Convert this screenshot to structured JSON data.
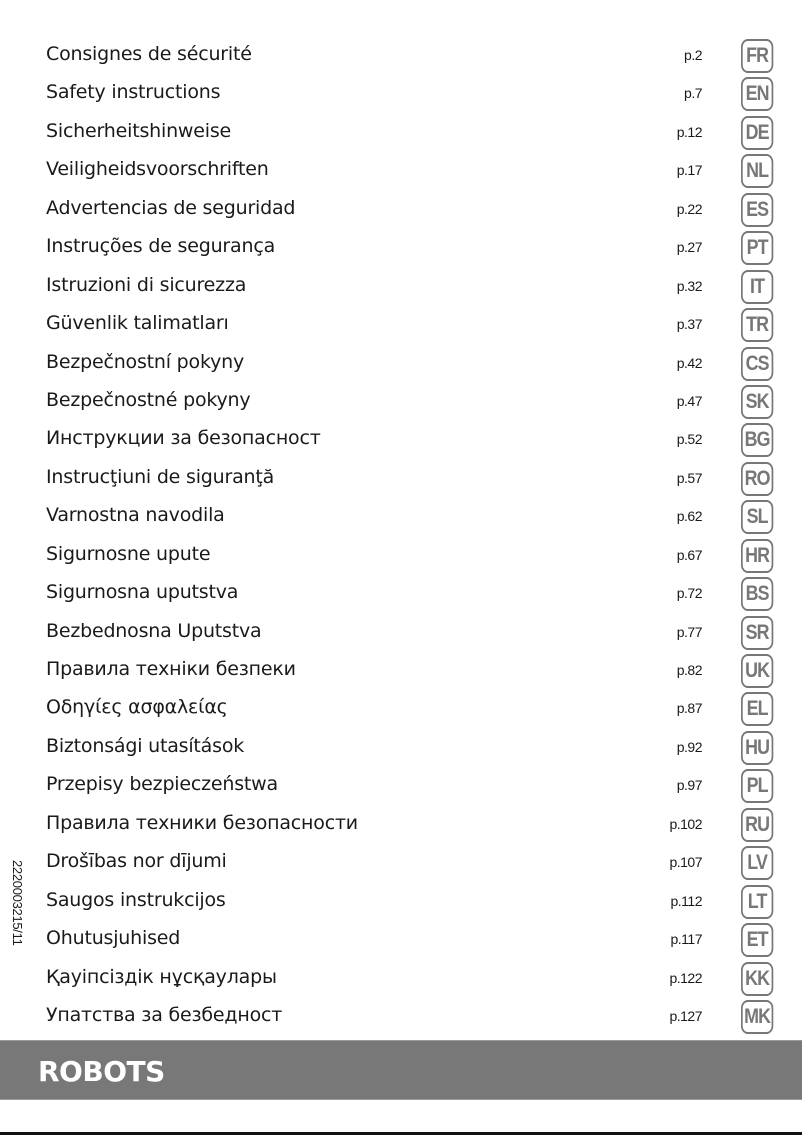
{
  "toc": [
    {
      "title": "Consignes de sécurité",
      "page": "p.2",
      "lang": "FR"
    },
    {
      "title": "Safety instructions",
      "page": "p.7",
      "lang": "EN"
    },
    {
      "title": "Sicherheitshinweise",
      "page": "p.12",
      "lang": "DE"
    },
    {
      "title": "Veiligheidsvoorschriften",
      "page": "p.17",
      "lang": "NL"
    },
    {
      "title": "Advertencias de seguridad",
      "page": "p.22",
      "lang": "ES"
    },
    {
      "title": "Instruções de segurança",
      "page": "p.27",
      "lang": "PT"
    },
    {
      "title": "Istruzioni di sicurezza",
      "page": "p.32",
      "lang": "IT"
    },
    {
      "title": "Güvenlik talimatları",
      "page": "p.37",
      "lang": "TR"
    },
    {
      "title": "Bezpečnostní pokyny",
      "page": "p.42",
      "lang": "CS"
    },
    {
      "title": "Bezpečnostné pokyny",
      "page": "p.47",
      "lang": "SK"
    },
    {
      "title": "Инструкции за безопасност",
      "page": "p.52",
      "lang": "BG"
    },
    {
      "title": "Instrucţiuni de siguranţă",
      "page": "p.57",
      "lang": "RO"
    },
    {
      "title": "Varnostna navodila",
      "page": "p.62",
      "lang": "SL"
    },
    {
      "title": "Sigurnosne upute",
      "page": "p.67",
      "lang": "HR"
    },
    {
      "title": "Sigurnosna uputstva",
      "page": "p.72",
      "lang": "BS"
    },
    {
      "title": "Bezbednosna Uputstva",
      "page": "p.77",
      "lang": "SR"
    },
    {
      "title": "Правила техніки безпеки",
      "page": "p.82",
      "lang": "UK"
    },
    {
      "title": "Οδηγίες ασφαλείας",
      "page": "p.87",
      "lang": "EL"
    },
    {
      "title": "Biztonsági utasítások",
      "page": "p.92",
      "lang": "HU"
    },
    {
      "title": "Przepisy bezpieczeństwa",
      "page": "p.97",
      "lang": "PL"
    },
    {
      "title": "Правила техники безопасности",
      "page": "p.102",
      "lang": "RU"
    },
    {
      "title": "Drošības nor dījumi",
      "page": "p.107",
      "lang": "LV"
    },
    {
      "title": "Saugos instrukcijos",
      "page": "p.112",
      "lang": "LT"
    },
    {
      "title": "Ohutusjuhised",
      "page": "p.117",
      "lang": "ET"
    },
    {
      "title": "Қауіпсіздік нұсқаулары",
      "page": "p.122",
      "lang": "KK"
    },
    {
      "title": "Упатства за безбедност",
      "page": "p.127",
      "lang": "MK"
    }
  ],
  "document_code": "2220003215/11",
  "brand": "ROBOTS",
  "colors": {
    "band": "#787878",
    "badge": "#777777"
  }
}
